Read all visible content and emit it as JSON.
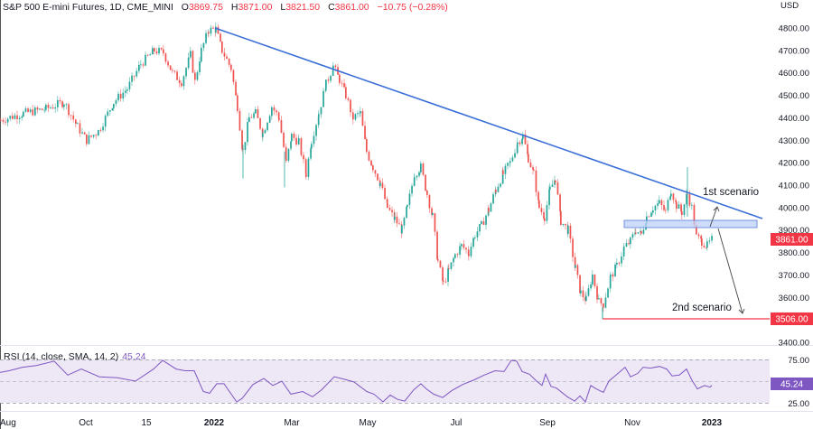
{
  "header": {
    "symbol": "S&P 500 E-mini Futures, 1D, CME_MINI",
    "open_label": "O",
    "open": "3869.75",
    "high_label": "H",
    "high": "3871.00",
    "low_label": "L",
    "low": "3821.50",
    "close_label": "C",
    "close": "3861.00",
    "change": "−10.75 (−0.28%)"
  },
  "price_axis": {
    "currency": "USD",
    "ticks": [
      "4800.00",
      "4700.00",
      "4600.00",
      "4500.00",
      "4400.00",
      "4300.00",
      "4200.00",
      "4100.00",
      "4000.00",
      "3900.00",
      "3800.00",
      "3700.00",
      "3600.00",
      "3400.00"
    ],
    "last_price_tag": "3861.00",
    "support_tag": "3506.00"
  },
  "rsi": {
    "label": "RSI (14, close, SMA, 14, 2)",
    "value": "45.24",
    "ticks": [
      "75.00",
      "50.00",
      "25.00"
    ],
    "value_tag": "45.24"
  },
  "time_axis": {
    "labels": [
      "Aug",
      "Oct",
      "15",
      "2022",
      "Mar",
      "May",
      "Jul",
      "Sep",
      "Nov",
      "2023"
    ]
  },
  "annotations": {
    "scenario1": "1st scenario",
    "scenario2": "2nd scenario"
  },
  "colors": {
    "up": "#26a69a",
    "down": "#ef5350",
    "trendline": "#3a6fd8",
    "support_line": "#f23645",
    "zone_fill": "#bcd0f5",
    "zone_stroke": "#5b7fd6",
    "rsi_line": "#7e57c2",
    "rsi_band": "#ede7f6"
  },
  "chart_data": {
    "type": "candlestick",
    "title": "S&P 500 E-mini Futures, 1D, CME_MINI",
    "xlabel": "",
    "ylabel": "USD",
    "ylim": [
      3400,
      4850
    ],
    "x_ticks": [
      "Aug",
      "Oct",
      "15",
      "2022",
      "Mar",
      "May",
      "Jul",
      "Sep",
      "Nov",
      "2023"
    ],
    "approx_swings": [
      {
        "date": "Aug 2021",
        "price": 4400
      },
      {
        "date": "Oct 2021",
        "price": 4290
      },
      {
        "date": "Nov 2021",
        "price": 4720
      },
      {
        "date": "Dec 2021",
        "price": 4500
      },
      {
        "date": "early Jan 2022",
        "price": 4810
      },
      {
        "date": "late Feb 2022",
        "price": 4110
      },
      {
        "date": "late Mar 2022",
        "price": 4630
      },
      {
        "date": "mid Jun 2022",
        "price": 3640
      },
      {
        "date": "mid Aug 2022",
        "price": 4320
      },
      {
        "date": "mid Oct 2022",
        "price": 3506
      },
      {
        "date": "early Dec 2022",
        "price": 4180
      },
      {
        "date": "late Dec 2022",
        "price": 3861
      }
    ],
    "last_ohlc": {
      "open": 3869.75,
      "high": 3871.0,
      "low": 3821.5,
      "close": 3861.0,
      "change": -10.75,
      "change_pct": -0.28
    },
    "trendline": {
      "from": {
        "date": "Jan 2022",
        "price": 4810
      },
      "to": {
        "date": "Jan 2023",
        "price": 3970
      }
    },
    "resistance_zone": [
      3910,
      3945
    ],
    "support_level": 3506,
    "annotations": [
      "1st scenario",
      "2nd scenario"
    ],
    "indicator": {
      "name": "RSI (14, close, SMA, 14, 2)",
      "last": 45.24,
      "levels": [
        25,
        50,
        75
      ],
      "ylim": [
        15,
        85
      ]
    }
  }
}
